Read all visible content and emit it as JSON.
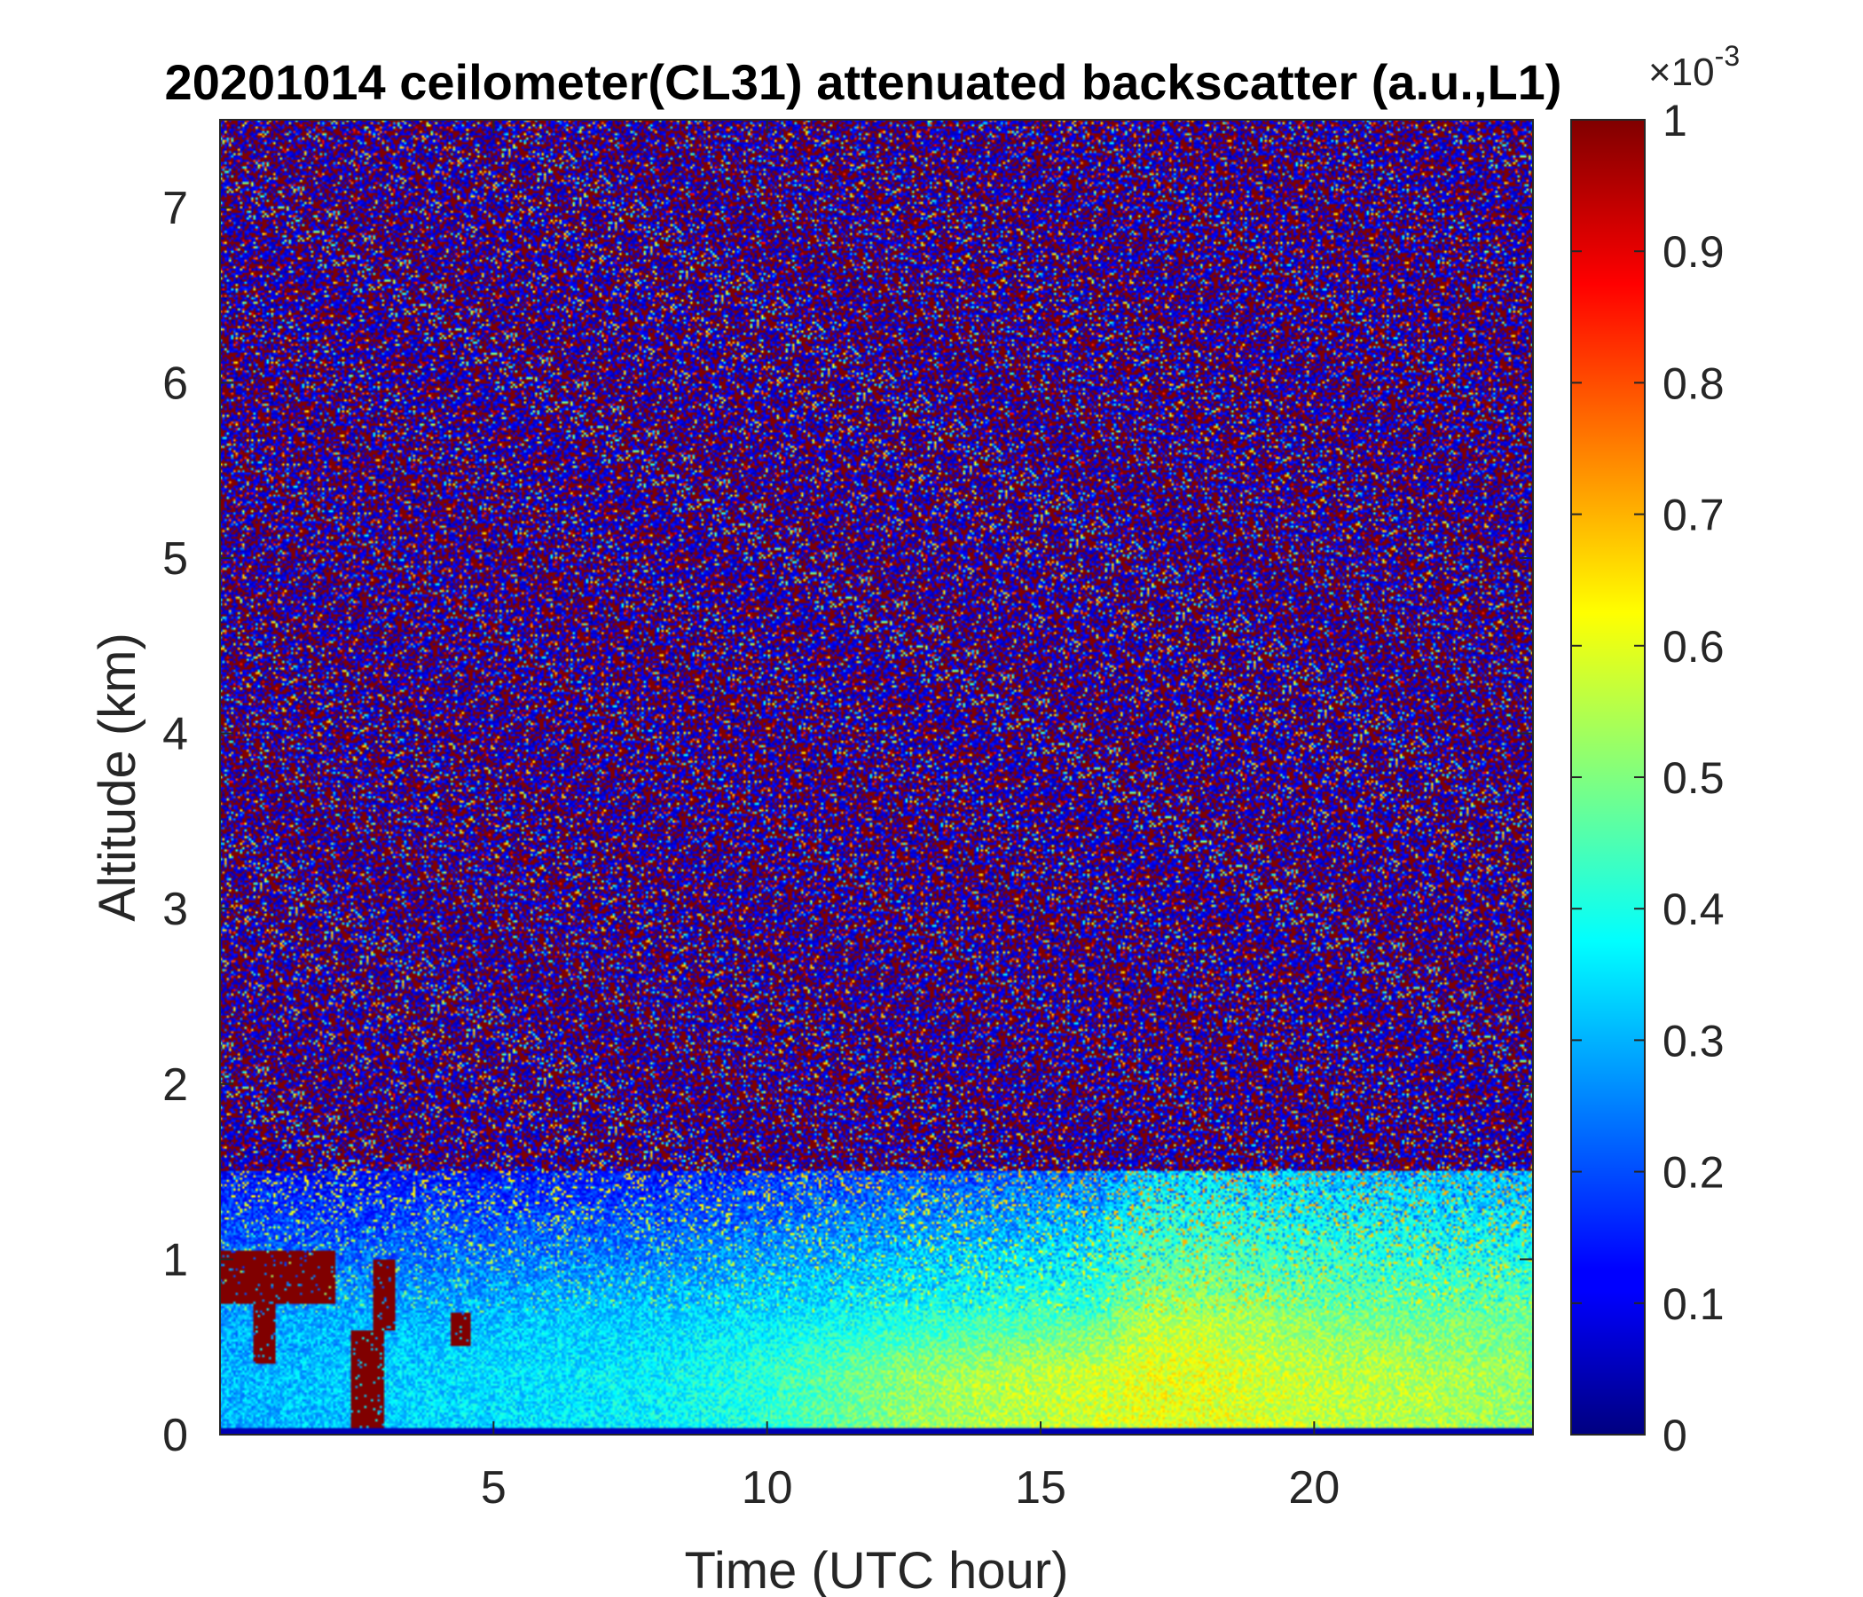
{
  "chart_data": {
    "type": "heatmap",
    "title": "20201014 ceilometer(CL31) attenuated backscatter (a.u.,L1)",
    "xlabel": "Time (UTC hour)",
    "ylabel": "Altitude (km)",
    "xlim": [
      0,
      24
    ],
    "ylim": [
      0,
      7.5
    ],
    "x_ticks": [
      5,
      10,
      15,
      20
    ],
    "y_ticks": [
      0,
      1,
      2,
      3,
      4,
      5,
      6,
      7
    ],
    "colorbar": {
      "label": "",
      "exponent_base": "10",
      "exponent": "-3",
      "range": [
        0,
        1
      ],
      "ticks": [
        0,
        0.1,
        0.2,
        0.3,
        0.4,
        0.5,
        0.6,
        0.7,
        0.8,
        0.9,
        1
      ],
      "colormap": "jet"
    },
    "field_description_levels": {
      "time_knots": [
        0,
        2,
        4,
        6,
        8,
        10,
        12,
        14,
        16,
        17,
        18,
        20,
        22,
        24
      ],
      "surface_layer_0_to_0_35km": [
        0.3,
        0.32,
        0.34,
        0.35,
        0.37,
        0.42,
        0.5,
        0.55,
        0.58,
        0.6,
        0.6,
        0.57,
        0.55,
        0.52
      ],
      "layer_0_35_to_0_7km": [
        0.28,
        0.3,
        0.3,
        0.32,
        0.33,
        0.35,
        0.38,
        0.42,
        0.45,
        0.55,
        0.55,
        0.5,
        0.48,
        0.48
      ],
      "layer_0_7_to_1_5km": [
        0.15,
        0.12,
        0.15,
        0.15,
        0.15,
        0.18,
        0.2,
        0.22,
        0.25,
        0.35,
        0.35,
        0.33,
        0.32,
        0.3
      ],
      "clouds": [
        {
          "t_start": 0,
          "t_end": 2.1,
          "alt_base": 0.75,
          "alt_top": 1.05,
          "value": 1.0
        },
        {
          "t_start": 0.6,
          "t_end": 1.0,
          "alt_base": 0.4,
          "alt_top": 0.75,
          "value": 1.0
        },
        {
          "t_start": 2.4,
          "t_end": 3.0,
          "alt_base": 0.0,
          "alt_top": 0.6,
          "value": 1.0
        },
        {
          "t_start": 2.8,
          "t_end": 3.2,
          "alt_base": 0.6,
          "alt_top": 1.0,
          "value": 1.0
        },
        {
          "t_start": 4.2,
          "t_end": 4.6,
          "alt_base": 0.5,
          "alt_top": 0.7,
          "value": 1.0
        }
      ],
      "free_troposphere_noise_mean": 0.45
    }
  }
}
